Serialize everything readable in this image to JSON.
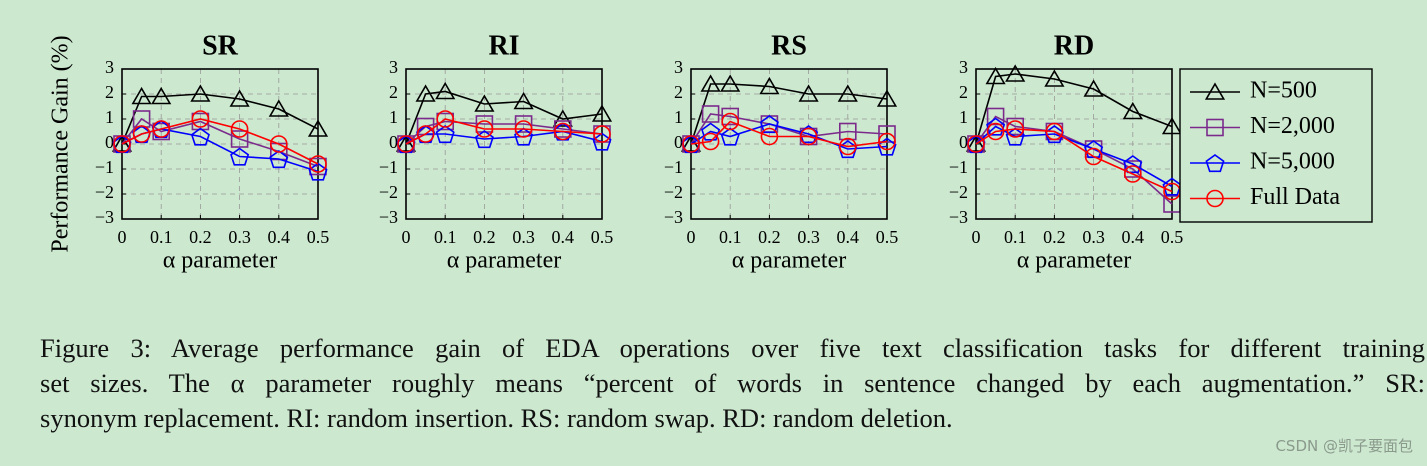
{
  "chart_data": [
    {
      "type": "line",
      "title": "SR",
      "ylabel": "Performance Gain (%)",
      "xlabel": "α parameter",
      "x": [
        0,
        0.05,
        0.1,
        0.2,
        0.3,
        0.4,
        0.5
      ],
      "xlim": [
        0,
        0.5
      ],
      "ylim": [
        -3,
        3
      ],
      "xticks": [
        0,
        0.1,
        0.2,
        0.3,
        0.4,
        0.5
      ],
      "yticks": [
        {
          "value": -3,
          "label": "−3"
        },
        {
          "value": -2,
          "label": "−2"
        },
        {
          "value": -1,
          "label": "−1"
        },
        0,
        1,
        2,
        3
      ],
      "grid": true,
      "series": [
        {
          "color": "#000000",
          "marker": "triangle",
          "values": [
            0,
            1.9,
            1.9,
            2.0,
            1.8,
            1.4,
            0.6
          ]
        },
        {
          "color": "#7b2a8c",
          "marker": "square",
          "values": [
            0,
            1.0,
            0.5,
            0.9,
            0.2,
            -0.3,
            -0.9
          ]
        },
        {
          "color": "#0000ff",
          "marker": "pentagon",
          "values": [
            0,
            0.4,
            0.6,
            0.3,
            -0.5,
            -0.6,
            -1.1
          ]
        },
        {
          "color": "#ff0000",
          "marker": "circle",
          "values": [
            0,
            0.4,
            0.6,
            1.0,
            0.6,
            0.0,
            -0.8
          ]
        }
      ]
    },
    {
      "type": "line",
      "title": "RI",
      "xlabel": "α parameter",
      "x": [
        0,
        0.05,
        0.1,
        0.2,
        0.3,
        0.4,
        0.5
      ],
      "xlim": [
        0,
        0.5
      ],
      "ylim": [
        -3,
        3
      ],
      "xticks": [
        0,
        0.1,
        0.2,
        0.3,
        0.4,
        0.5
      ],
      "yticks": [
        {
          "value": -3,
          "label": "−3"
        },
        {
          "value": -2,
          "label": "−2"
        },
        {
          "value": -1,
          "label": "−1"
        },
        0,
        1,
        2,
        3
      ],
      "grid": true,
      "series": [
        {
          "color": "#000000",
          "marker": "triangle",
          "values": [
            0,
            2.0,
            2.1,
            1.6,
            1.7,
            1.0,
            1.2
          ]
        },
        {
          "color": "#7b2a8c",
          "marker": "square",
          "values": [
            0,
            0.7,
            0.9,
            0.8,
            0.8,
            0.6,
            0.4
          ]
        },
        {
          "color": "#0000ff",
          "marker": "pentagon",
          "values": [
            0,
            0.4,
            0.4,
            0.2,
            0.3,
            0.5,
            0.1
          ]
        },
        {
          "color": "#ff0000",
          "marker": "circle",
          "values": [
            0,
            0.4,
            1.0,
            0.6,
            0.6,
            0.5,
            0.4
          ]
        }
      ]
    },
    {
      "type": "line",
      "title": "RS",
      "xlabel": "α parameter",
      "x": [
        0,
        0.05,
        0.1,
        0.2,
        0.3,
        0.4,
        0.5
      ],
      "xlim": [
        0,
        0.5
      ],
      "ylim": [
        -3,
        3
      ],
      "xticks": [
        0,
        0.1,
        0.2,
        0.3,
        0.4,
        0.5
      ],
      "yticks": [
        {
          "value": -3,
          "label": "−3"
        },
        {
          "value": -2,
          "label": "−2"
        },
        {
          "value": -1,
          "label": "−1"
        },
        0,
        1,
        2,
        3
      ],
      "grid": true,
      "series": [
        {
          "color": "#000000",
          "marker": "triangle",
          "values": [
            0,
            2.4,
            2.4,
            2.3,
            2.0,
            2.0,
            1.8
          ]
        },
        {
          "color": "#7b2a8c",
          "marker": "square",
          "values": [
            0,
            1.2,
            1.1,
            0.8,
            0.3,
            0.5,
            0.4
          ]
        },
        {
          "color": "#0000ff",
          "marker": "pentagon",
          "values": [
            0,
            0.5,
            0.3,
            0.8,
            0.4,
            -0.2,
            -0.1
          ]
        },
        {
          "color": "#ff0000",
          "marker": "circle",
          "values": [
            0,
            0.1,
            0.9,
            0.3,
            0.3,
            -0.1,
            0.1
          ]
        }
      ]
    },
    {
      "type": "line",
      "title": "RD",
      "xlabel": "α parameter",
      "x": [
        0,
        0.05,
        0.1,
        0.2,
        0.3,
        0.4,
        0.5
      ],
      "xlim": [
        0,
        0.5
      ],
      "ylim": [
        -3,
        3
      ],
      "xticks": [
        0,
        0.1,
        0.2,
        0.3,
        0.4,
        0.5
      ],
      "yticks": [
        {
          "value": -3,
          "label": "−3"
        },
        {
          "value": -2,
          "label": "−2"
        },
        {
          "value": -1,
          "label": "−1"
        },
        0,
        1,
        2,
        3
      ],
      "grid": true,
      "legend": "outside right",
      "series": [
        {
          "name": "N=500",
          "color": "#000000",
          "marker": "triangle",
          "values": [
            0,
            2.7,
            2.8,
            2.6,
            2.2,
            1.3,
            0.7
          ]
        },
        {
          "name": "N=2,000",
          "color": "#7b2a8c",
          "marker": "square",
          "values": [
            0,
            1.1,
            0.7,
            0.5,
            -0.2,
            -1.0,
            -2.4
          ]
        },
        {
          "name": "N=5,000",
          "color": "#0000ff",
          "marker": "pentagon",
          "values": [
            0,
            0.7,
            0.3,
            0.4,
            -0.2,
            -0.8,
            -1.7
          ]
        },
        {
          "name": "Full Data",
          "color": "#ff0000",
          "marker": "circle",
          "values": [
            0,
            0.5,
            0.6,
            0.5,
            -0.5,
            -1.2,
            -1.9
          ]
        }
      ]
    }
  ],
  "caption": [
    "Figure 3: Average performance gain of EDA operations over five text classification tasks for different training",
    "set sizes. The α parameter roughly means “percent of words in sentence changed by each augmentation.” SR:",
    "synonym replacement. RI: random insertion. RS: random swap. RD: random deletion."
  ],
  "watermark": "CSDN @凯子要面包"
}
